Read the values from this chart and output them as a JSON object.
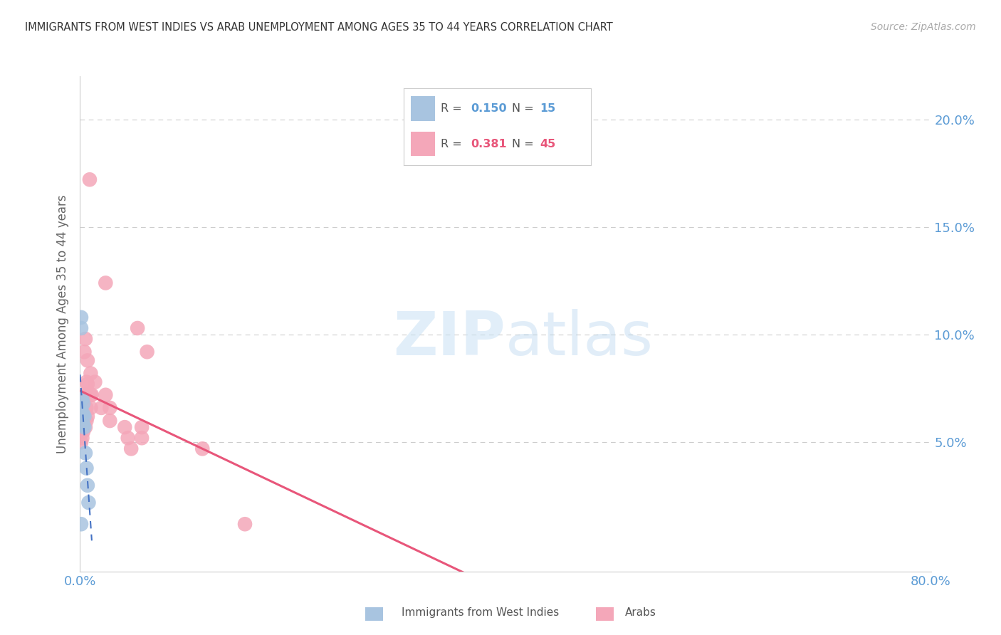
{
  "title": "IMMIGRANTS FROM WEST INDIES VS ARAB UNEMPLOYMENT AMONG AGES 35 TO 44 YEARS CORRELATION CHART",
  "source": "Source: ZipAtlas.com",
  "ylabel": "Unemployment Among Ages 35 to 44 years",
  "xlim": [
    0.0,
    0.8
  ],
  "ylim": [
    -0.01,
    0.22
  ],
  "ytick_vals": [
    0.0,
    0.05,
    0.1,
    0.15,
    0.2
  ],
  "xtick_vals": [
    0.0,
    0.8
  ],
  "west_indies_R": 0.15,
  "west_indies_N": 15,
  "arab_R": 0.381,
  "arab_N": 45,
  "west_indies_color": "#a8c4e0",
  "west_indies_line_color": "#4472c4",
  "arab_color": "#f4a7b9",
  "arab_line_color": "#e8567a",
  "axis_color": "#5b9bd5",
  "grid_color": "#cccccc",
  "west_indies_x": [
    0.001,
    0.001,
    0.001,
    0.002,
    0.002,
    0.003,
    0.003,
    0.003,
    0.004,
    0.004,
    0.005,
    0.006,
    0.007,
    0.008,
    0.001
  ],
  "west_indies_y": [
    0.108,
    0.103,
    0.065,
    0.07,
    0.063,
    0.068,
    0.063,
    0.058,
    0.062,
    0.057,
    0.045,
    0.038,
    0.03,
    0.022,
    0.012
  ],
  "arab_x": [
    0.001,
    0.001,
    0.001,
    0.001,
    0.002,
    0.002,
    0.002,
    0.002,
    0.002,
    0.003,
    0.003,
    0.003,
    0.004,
    0.004,
    0.004,
    0.005,
    0.005,
    0.005,
    0.006,
    0.006,
    0.006,
    0.006,
    0.007,
    0.007,
    0.007,
    0.009,
    0.01,
    0.01,
    0.01,
    0.011,
    0.014,
    0.02,
    0.024,
    0.024,
    0.028,
    0.028,
    0.042,
    0.045,
    0.048,
    0.054,
    0.058,
    0.058,
    0.063,
    0.115,
    0.155
  ],
  "arab_y": [
    0.065,
    0.06,
    0.055,
    0.05,
    0.065,
    0.062,
    0.06,
    0.057,
    0.052,
    0.066,
    0.06,
    0.055,
    0.092,
    0.072,
    0.062,
    0.098,
    0.072,
    0.057,
    0.078,
    0.072,
    0.066,
    0.06,
    0.088,
    0.077,
    0.062,
    0.172,
    0.082,
    0.072,
    0.066,
    0.072,
    0.078,
    0.066,
    0.072,
    0.124,
    0.066,
    0.06,
    0.057,
    0.052,
    0.047,
    0.103,
    0.057,
    0.052,
    0.092,
    0.047,
    0.012
  ]
}
